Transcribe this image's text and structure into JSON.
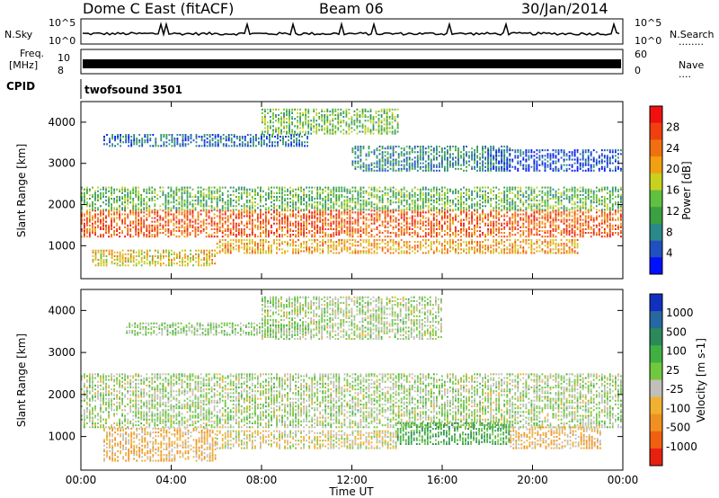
{
  "header": {
    "station": "Dome C East (fitACF)",
    "beam": "Beam 06",
    "date": "30/Jan/2014"
  },
  "strip_labels": {
    "nsky": "N.Sky",
    "nsearch": "N.Search",
    "freq_line1": "Freq.",
    "freq_line2": "[MHz]",
    "cpid": "CPID",
    "nave": "Nave",
    "nsearch_dots": "........",
    "nave_dots": "....",
    "noise_top": "10^5",
    "noise_bottom": "10^0",
    "freq_top": "10",
    "freq_bottom": "8",
    "nave_top": "60",
    "nave_bottom": "0",
    "cpid_value": "twofsound 3501"
  },
  "xaxis": {
    "label": "Time UT",
    "ticks": [
      "00:00",
      "04:00",
      "08:00",
      "12:00",
      "16:00",
      "20:00",
      "00:00"
    ]
  },
  "chart_data": [
    {
      "type": "heatmap",
      "name": "power",
      "ylabel": "Slant Range [km]",
      "yticks": [
        "1000",
        "2000",
        "3000",
        "4000"
      ],
      "ylim": [
        200,
        4500
      ],
      "xlim_hours": [
        0,
        24
      ],
      "colorbar_label": "Power [dB]",
      "colorbar_ticks": [
        "4",
        "8",
        "12",
        "16",
        "20",
        "24",
        "28"
      ],
      "colorbar_colors": [
        "#0010ff",
        "#2050c0",
        "#2a8a8a",
        "#3aa040",
        "#60c040",
        "#c8d020",
        "#f0a010",
        "#f07010",
        "#f04010",
        "#f01010"
      ],
      "bands": [
        {
          "t0": 0.0,
          "t1": 24.0,
          "r0": 1200,
          "r1": 1850,
          "v": 26
        },
        {
          "t0": 0.0,
          "t1": 24.0,
          "r0": 1850,
          "r1": 2400,
          "v": 14
        },
        {
          "t0": 0.5,
          "t1": 6.0,
          "r0": 500,
          "r1": 900,
          "v": 20
        },
        {
          "t0": 6.0,
          "t1": 22.0,
          "r0": 800,
          "r1": 1150,
          "v": 22
        },
        {
          "t0": 1.0,
          "t1": 10.0,
          "r0": 3400,
          "r1": 3700,
          "v": 8
        },
        {
          "t0": 8.0,
          "t1": 14.0,
          "r0": 3700,
          "r1": 4300,
          "v": 15
        },
        {
          "t0": 12.0,
          "t1": 19.0,
          "r0": 2800,
          "r1": 3400,
          "v": 10
        },
        {
          "t0": 18.0,
          "t1": 24.0,
          "r0": 2800,
          "r1": 3300,
          "v": 6
        }
      ]
    },
    {
      "type": "heatmap",
      "name": "velocity",
      "ylabel": "Slant Range [km]",
      "yticks": [
        "1000",
        "2000",
        "3000",
        "4000"
      ],
      "ylim": [
        200,
        4500
      ],
      "xlim_hours": [
        0,
        24
      ],
      "colorbar_label": "Velocity [m s-1]",
      "colorbar_ticks": [
        "1000",
        "500",
        "100",
        "25",
        "-25",
        "-100",
        "-500",
        "-1000"
      ],
      "colorbar_colors": [
        "#1030c0",
        "#2868a0",
        "#2a8a5a",
        "#40b040",
        "#70c840",
        "#c0c0b8",
        "#f0b030",
        "#f09020",
        "#f06010",
        "#e82010"
      ],
      "bands": [
        {
          "t0": 0.0,
          "t1": 24.0,
          "r0": 1200,
          "r1": 2500,
          "v": 0
        },
        {
          "t0": 1.0,
          "t1": 6.0,
          "r0": 400,
          "r1": 1200,
          "v": -300
        },
        {
          "t0": 6.0,
          "t1": 14.0,
          "r0": 700,
          "r1": 1150,
          "v": -150
        },
        {
          "t0": 14.0,
          "t1": 19.0,
          "r0": 800,
          "r1": 1300,
          "v": 300
        },
        {
          "t0": 19.0,
          "t1": 23.0,
          "r0": 700,
          "r1": 1200,
          "v": -300
        },
        {
          "t0": 8.0,
          "t1": 16.0,
          "r0": 3300,
          "r1": 4300,
          "v": 0
        },
        {
          "t0": 2.0,
          "t1": 10.0,
          "r0": 3400,
          "r1": 3700,
          "v": 50
        }
      ]
    }
  ]
}
